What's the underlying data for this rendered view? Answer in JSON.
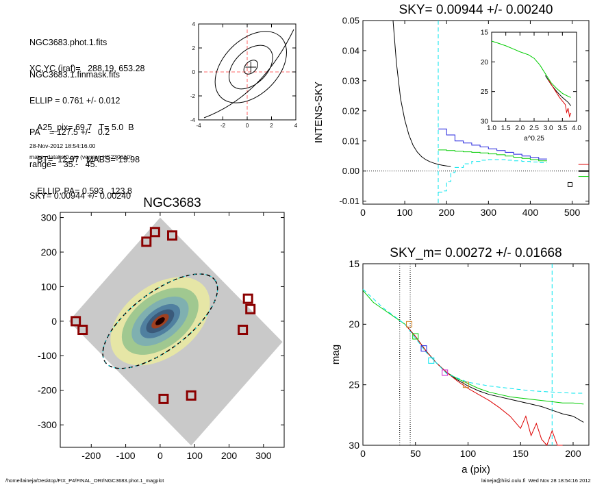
{
  "header": {
    "files": [
      "NGC3683.phot.1.fits",
      "NGC3683.1.finmask.fits"
    ],
    "params": [
      "XC,YC (iraf)=   288.19, 653.28",
      "ELLIP = 0.761 +/- 0.012",
      "PA    = 127.5 +/-   0.2",
      "range=   35.-   45.",
      "SKY= 0.00944 +/- 0.00240"
    ],
    "photometry": [
      "A25_pix= 69.7   T= 5.0  B",
      "BT=  12.97   MABS=-19.98",
      "ELLIP, PA= 0.593   123.8"
    ],
    "timestamp": "28-Nov-2012 18:54:16.00",
    "program": "make_datalist0.pro (version HS230610)"
  },
  "footer": {
    "path": "/home/laineja/Desktop/FIX_P4/FINAL_ORI/NGC3683.phot.1_magplot",
    "user": "laineja@hiisi.oulu.fi  Wed Nov 28 18:54:16 2012"
  },
  "colors": {
    "profile": "#000000",
    "green": "#00cc00",
    "blue": "#2222dd",
    "red": "#dd0000",
    "cyan": "#00e5ee",
    "orange": "#d08020",
    "magenta": "#cc22cc",
    "dashedRed": "#ff6666",
    "mask": "#8b0000"
  },
  "chart_data": [
    {
      "type": "line",
      "name": "contour-plot",
      "xlim": [
        -4,
        4
      ],
      "ylim": [
        -4,
        4
      ],
      "xticks": [
        -4,
        -2,
        0,
        2,
        4
      ],
      "yticks": [
        -4,
        -2,
        0,
        2,
        4
      ],
      "center": [
        0.3,
        0.4
      ]
    },
    {
      "type": "line",
      "title": "SKY= 0.00944 +/- 0.00240",
      "ylabel": "INTENS-SKY",
      "xlim": [
        0,
        540
      ],
      "ylim": [
        -0.011,
        0.05
      ],
      "xticks": [
        0,
        100,
        200,
        300,
        400,
        500
      ],
      "yticks": [
        "0.05",
        "0.04",
        "0.03",
        "0.02",
        "0.01",
        "0.00",
        "-0.01"
      ],
      "series": [
        {
          "color": "black",
          "x": [
            72,
            80,
            90,
            100,
            110,
            120,
            130,
            140,
            150,
            160,
            170,
            180,
            190,
            200,
            210
          ],
          "y": [
            0.05,
            0.036,
            0.024,
            0.017,
            0.012,
            0.0085,
            0.0063,
            0.0048,
            0.0038,
            0.0031,
            0.0026,
            0.0022,
            0.0019,
            0.0017,
            0.0015
          ]
        },
        {
          "color": "blue",
          "x": [
            180,
            200,
            220,
            240,
            260,
            280,
            300,
            320,
            340,
            360,
            380,
            400,
            420,
            440
          ],
          "y": [
            0.014,
            0.012,
            0.01,
            0.0093,
            0.0086,
            0.008,
            0.0074,
            0.0068,
            0.0062,
            0.0056,
            0.005,
            0.0045,
            0.004,
            0.0035
          ]
        },
        {
          "color": "green",
          "x": [
            180,
            200,
            220,
            240,
            260,
            280,
            300,
            320,
            340,
            360,
            380,
            400,
            420,
            440
          ],
          "y": [
            0.007,
            0.0068,
            0.0066,
            0.0064,
            0.0062,
            0.006,
            0.0057,
            0.0054,
            0.005,
            0.0046,
            0.0042,
            0.0038,
            0.0034,
            0.0031
          ]
        },
        {
          "color": "cyan",
          "x": [
            180,
            190,
            200,
            210,
            220,
            240,
            260,
            280,
            300,
            320,
            340,
            360,
            380,
            400,
            420,
            440
          ],
          "y": [
            -0.007,
            -0.0066,
            -0.0035,
            -0.0005,
            0.0012,
            0.0024,
            0.0032,
            0.0036,
            0.0038,
            0.0038,
            0.0036,
            0.0034,
            0.0032,
            0.003,
            0.0028,
            0.0027
          ]
        }
      ],
      "sky_line": 0.0,
      "vline": 180,
      "marker": {
        "x": 495,
        "y": -0.0045
      },
      "inset": {
        "xlabel": "a^0.25",
        "xlim": [
          1.0,
          4.0
        ],
        "ylim": [
          15,
          30
        ],
        "xticks": [
          "1.0",
          "1.5",
          "2.0",
          "2.5",
          "3.0",
          "3.5",
          "4.0"
        ],
        "yticks": [
          "15",
          "20",
          "25",
          "30"
        ],
        "series": [
          {
            "color": "green",
            "x": [
              1.0,
              1.2,
              1.5,
              1.8,
              2.0,
              2.3,
              2.5,
              2.7,
              2.9,
              3.1,
              3.3,
              3.5,
              3.7,
              3.8
            ],
            "y": [
              16.5,
              16.8,
              17.3,
              17.9,
              18.3,
              18.8,
              19.4,
              20.5,
              22,
              23.5,
              24.5,
              25.3,
              25.8,
              26
            ]
          },
          {
            "color": "black",
            "x": [
              2.9,
              3.1,
              3.3,
              3.5,
              3.7,
              3.8
            ],
            "y": [
              22.3,
              23.8,
              25,
              26,
              26.8,
              27.4
            ]
          },
          {
            "color": "red",
            "x": [
              3.0,
              3.2,
              3.4,
              3.6,
              3.65,
              3.7,
              3.75,
              3.8
            ],
            "y": [
              23,
              24.5,
              26,
              27.2,
              28.5,
              27.8,
              29.2,
              28.6
            ]
          }
        ]
      }
    },
    {
      "type": "scatter",
      "title": "NGC3683",
      "xlim": [
        -290,
        360
      ],
      "ylim": [
        -365,
        315
      ],
      "xticks": [
        -200,
        -100,
        0,
        100,
        200,
        300
      ],
      "yticks": [
        300,
        200,
        100,
        0,
        -100,
        -200,
        -300
      ],
      "mask_boxes": [
        [
          -40,
          230
        ],
        [
          -15,
          258
        ],
        [
          35,
          248
        ],
        [
          -245,
          0
        ],
        [
          -225,
          -25
        ],
        [
          255,
          65
        ],
        [
          262,
          35
        ],
        [
          240,
          -25
        ],
        [
          10,
          -225
        ],
        [
          90,
          -215
        ]
      ]
    },
    {
      "type": "line",
      "title": "SKY_m=  0.00272 +/- 0.01668",
      "xlabel": "a (pix)",
      "ylabel": "mag",
      "xlim": [
        0,
        215
      ],
      "ylim": [
        15,
        30
      ],
      "xticks": [
        0,
        50,
        100,
        150,
        200
      ],
      "yticks": [
        15,
        20,
        25,
        30
      ],
      "vlines_dotted": [
        35,
        45
      ],
      "vline_dashed": 180,
      "series": [
        {
          "color": "green",
          "x": [
            0,
            10,
            20,
            30,
            40,
            50,
            60,
            70,
            80,
            90,
            100,
            110,
            120,
            130,
            140,
            150,
            160,
            170,
            180,
            190,
            200,
            210
          ],
          "y": [
            17.2,
            18.2,
            18.8,
            19.4,
            20.0,
            21.0,
            22.2,
            23.2,
            24.0,
            24.5,
            24.9,
            25.3,
            25.6,
            25.8,
            26.0,
            26.1,
            26.2,
            26.3,
            26.4,
            26.5,
            26.5,
            26.6
          ]
        },
        {
          "color": "black",
          "x": [
            40,
            50,
            60,
            70,
            80,
            90,
            100,
            110,
            120,
            130,
            140,
            150,
            160,
            170,
            180,
            190,
            200,
            210
          ],
          "y": [
            20.0,
            21.0,
            22.2,
            23.2,
            24.0,
            24.6,
            25.1,
            25.5,
            25.8,
            26.0,
            26.2,
            26.4,
            26.6,
            26.8,
            27.1,
            27.4,
            27.6,
            28.1
          ]
        },
        {
          "color": "red",
          "x": [
            40,
            50,
            60,
            70,
            80,
            90,
            100,
            110,
            120,
            130,
            140,
            150,
            155,
            160,
            165,
            170,
            175,
            180,
            185,
            190
          ],
          "y": [
            20.0,
            21.0,
            22.2,
            23.2,
            24.0,
            24.7,
            25.3,
            25.8,
            26.3,
            26.9,
            27.6,
            28.6,
            27.6,
            29.2,
            28.2,
            29.5,
            30,
            28.8,
            30,
            30
          ]
        },
        {
          "color": "cyan",
          "x": [
            0,
            20,
            40,
            60,
            80,
            100,
            120,
            140,
            160,
            180,
            200,
            210
          ],
          "y": [
            17.1,
            18.7,
            20.0,
            22.3,
            24.1,
            24.8,
            25.1,
            25.3,
            25.5,
            25.6,
            25.7,
            25.7
          ]
        }
      ],
      "markers": [
        {
          "x": 44,
          "y": 20.0,
          "color": "orange"
        },
        {
          "x": 50,
          "y": 21.0,
          "color": "green"
        },
        {
          "x": 58,
          "y": 22.0,
          "color": "blue"
        },
        {
          "x": 65,
          "y": 23.0,
          "color": "cyan"
        },
        {
          "x": 78,
          "y": 24.0,
          "color": "magenta"
        },
        {
          "x": 98,
          "y": 25.0,
          "color": "orange"
        }
      ]
    }
  ]
}
